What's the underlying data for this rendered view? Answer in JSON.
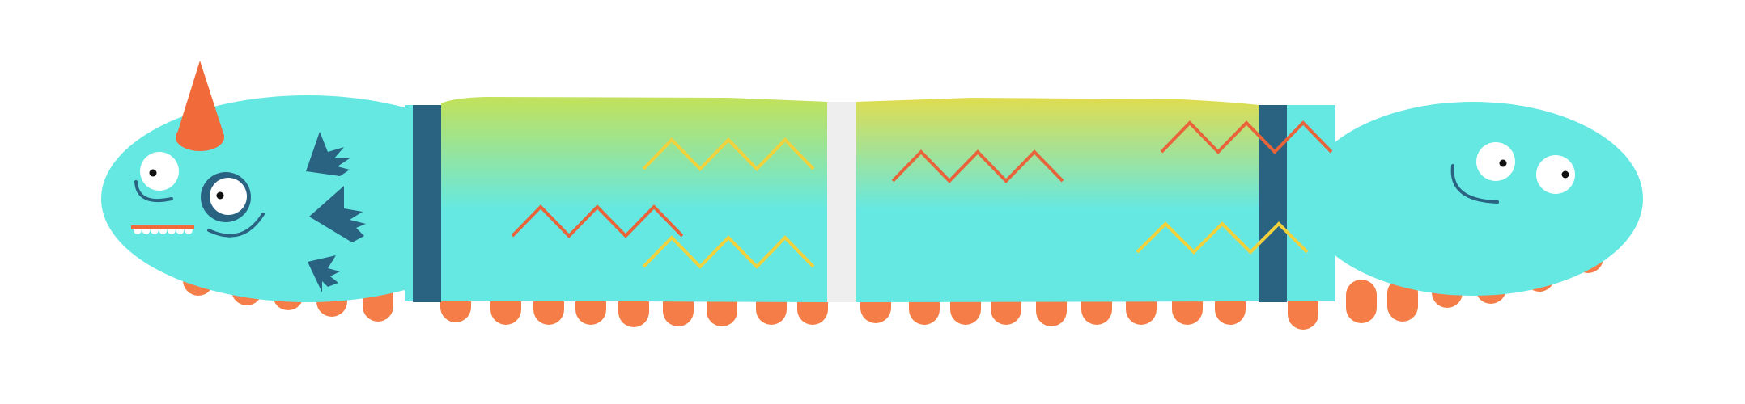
{
  "title": "",
  "palette": {
    "background": "#ffffff",
    "body_cyan": "#65E8E2",
    "gradient_top": "#E0DC4F",
    "gradient_mid": "#C3E15A",
    "band_navy": "#2A6382",
    "divider_gray": "#EEEEEE",
    "legs_orange": "#F57E48",
    "horn_orange": "#F06A3A",
    "zigzag_orange": "#E8633A",
    "zigzag_yellow": "#F2D23C",
    "eye_white": "#ffffff",
    "pupil_black": "#111111",
    "mark_navy": "#2A6382",
    "smile_navy": "#2A6382",
    "teeth_white": "#ffffff",
    "teeth_strip": "#F06A3A"
  },
  "icons": {
    "horn": "cone-horn-icon",
    "spikes": "spike-burst-icon",
    "zigzags": "zigzag-stripe-icon",
    "eyes": "googly-eye-icon"
  }
}
